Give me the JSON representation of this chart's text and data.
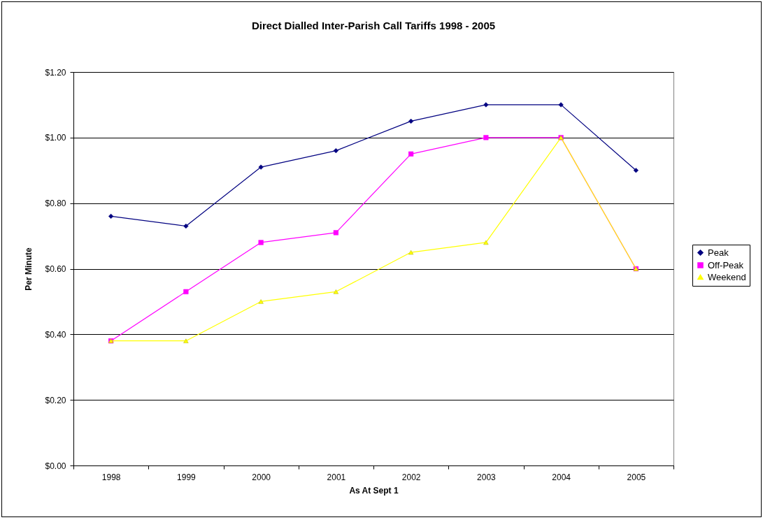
{
  "chart_data": {
    "type": "line",
    "title": "Direct Dialled Inter-Parish Call Tariffs 1998 - 2005",
    "xlabel": "As At Sept 1",
    "ylabel": "Per Minute",
    "categories": [
      "1998",
      "1999",
      "2000",
      "2001",
      "2002",
      "2003",
      "2004",
      "2005"
    ],
    "series": [
      {
        "name": "Peak",
        "color": "#000080",
        "marker": "diamond",
        "values": [
          0.76,
          0.73,
          0.91,
          0.96,
          1.05,
          1.1,
          1.1,
          0.9
        ]
      },
      {
        "name": "Off-Peak",
        "color": "#ff00ff",
        "marker": "square",
        "values": [
          0.38,
          0.53,
          0.68,
          0.71,
          0.95,
          1.0,
          1.0,
          0.6
        ]
      },
      {
        "name": "Weekend",
        "color": "#ffff00",
        "marker": "triangle",
        "values": [
          0.38,
          0.38,
          0.5,
          0.53,
          0.65,
          0.68,
          1.0,
          0.6
        ]
      }
    ],
    "ylim": [
      0,
      1.2
    ],
    "yticks": [
      {
        "value": 0,
        "label": "$0.00"
      },
      {
        "value": 0.2,
        "label": "$0.20"
      },
      {
        "value": 0.4,
        "label": "$0.40"
      },
      {
        "value": 0.6,
        "label": "$0.60"
      },
      {
        "value": 0.8,
        "label": "$0.80"
      },
      {
        "value": 1.0,
        "label": "$1.00"
      },
      {
        "value": 1.2,
        "label": "$1.20"
      }
    ],
    "grid": "y",
    "legend": "right",
    "line_style": "solid"
  }
}
